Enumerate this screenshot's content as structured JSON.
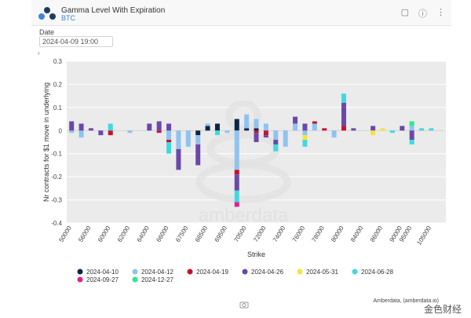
{
  "header": {
    "title": "Gamma Level With Expiration",
    "subtitle": "BTC",
    "icons": [
      "bookmark-icon",
      "info-icon",
      "more-icon"
    ]
  },
  "filter": {
    "label": "Date",
    "value": "2024-04-09 19:00"
  },
  "credit": "Amberdata, (amberdata.io)",
  "brand": "金色财经",
  "watermark": "amberdata",
  "colors": {
    "plot_bg": "#ebebeb",
    "grid": "#ffffff"
  },
  "chart_data": {
    "type": "bar",
    "stacked": true,
    "xlabel": "Strike",
    "ylabel": "Nr contracts for $1 move in underlying",
    "ylim": [
      -0.4,
      0.3
    ],
    "yticks": [
      "0.3",
      "0.2",
      "0.1",
      "0",
      "-0.1",
      "-0.2",
      "-0.3",
      "-0.4"
    ],
    "categories": [
      "50000",
      "55000",
      "56000",
      "58000",
      "60000",
      "61000",
      "62000",
      "63000",
      "64000",
      "65000",
      "66000",
      "67000",
      "67500",
      "68000",
      "68500",
      "69000",
      "69500",
      "70000",
      "70500",
      "71000",
      "72000",
      "73000",
      "74000",
      "75000",
      "76000",
      "77000",
      "78000",
      "79000",
      "80000",
      "82000",
      "84000",
      "85000",
      "86000",
      "88000",
      "90000",
      "95000",
      "100000",
      "105000",
      "110000"
    ],
    "tick_labels": [
      "50000",
      "56000",
      "60000",
      "62000",
      "64000",
      "66000",
      "67500",
      "68500",
      "69500",
      "70500",
      "72000",
      "74000",
      "76000",
      "78000",
      "80000",
      "84000",
      "86000",
      "90000",
      "95000",
      "105000"
    ],
    "series": [
      {
        "name": "2024-04-10",
        "color": "#0b2545",
        "values": [
          0,
          0,
          0,
          0,
          0,
          0,
          0,
          0,
          0,
          0,
          0,
          0,
          0,
          -0.02,
          0.02,
          0.03,
          0,
          0.05,
          0.01,
          0.01,
          0,
          0,
          0,
          0,
          0,
          0,
          0,
          0,
          0,
          0,
          0,
          0,
          0,
          0,
          0,
          0,
          0,
          0,
          0
        ]
      },
      {
        "name": "2024-04-12",
        "color": "#8fc3f0",
        "values": [
          -0.01,
          -0.03,
          0,
          0,
          0,
          0,
          -0.01,
          0,
          0,
          0,
          -0.04,
          -0.08,
          -0.07,
          -0.04,
          0.01,
          0,
          -0.01,
          -0.17,
          0.06,
          0.04,
          0.03,
          -0.04,
          -0.07,
          0.03,
          -0.02,
          0.03,
          0,
          -0.03,
          0,
          0,
          0,
          0,
          0,
          0,
          0,
          0.02,
          0,
          0,
          0
        ]
      },
      {
        "name": "2024-04-19",
        "color": "#c8102e",
        "values": [
          0,
          0,
          0,
          0,
          -0.02,
          0,
          0,
          0,
          0,
          -0.01,
          -0.01,
          0,
          0,
          0,
          0,
          0,
          0,
          -0.02,
          0,
          -0.01,
          -0.02,
          0,
          0,
          0,
          0,
          0.01,
          0.01,
          0,
          0.02,
          0,
          0,
          0,
          0,
          0,
          0,
          0,
          0,
          0,
          0
        ]
      },
      {
        "name": "2024-04-26",
        "color": "#6b48a8",
        "values": [
          0.04,
          0.03,
          0.01,
          -0.02,
          0,
          0,
          0,
          0,
          0.03,
          0.04,
          0.03,
          -0.09,
          0,
          -0.09,
          0,
          0,
          0,
          -0.07,
          0,
          -0.04,
          -0.01,
          -0.02,
          0,
          0.03,
          0.03,
          0,
          0,
          0,
          0.1,
          0.01,
          0,
          0.02,
          0,
          0,
          0.02,
          -0.04,
          0,
          0,
          0
        ]
      },
      {
        "name": "2024-05-31",
        "color": "#f5e43b",
        "values": [
          0,
          0,
          0,
          0,
          0,
          0,
          0,
          0,
          0,
          0,
          0,
          0,
          0,
          0,
          0,
          0,
          0,
          0,
          0,
          0,
          0,
          0,
          0,
          0,
          -0.02,
          0,
          0,
          0,
          0,
          0,
          0,
          -0.02,
          0.01,
          0,
          0,
          0,
          0,
          0,
          0
        ]
      },
      {
        "name": "2024-06-28",
        "color": "#40d9e2",
        "values": [
          0,
          0,
          0,
          0,
          0.03,
          0,
          0,
          0,
          0,
          0,
          -0.05,
          0,
          0,
          0,
          0,
          -0.02,
          0,
          -0.05,
          0,
          0,
          0,
          -0.03,
          0,
          0,
          -0.03,
          0,
          0,
          0,
          0.04,
          0,
          0,
          0,
          0,
          -0.01,
          0,
          -0.02,
          0.01,
          0.01,
          0
        ]
      },
      {
        "name": "2024-09-27",
        "color": "#e0208f",
        "values": [
          0,
          0,
          0,
          0,
          0,
          0,
          0,
          0,
          0,
          0,
          0,
          0,
          0,
          0,
          0,
          0,
          0,
          -0.02,
          0,
          0,
          0,
          0,
          0,
          0,
          0,
          0,
          0,
          0,
          0,
          0,
          0,
          0,
          0,
          0,
          0,
          0,
          0,
          0,
          0
        ]
      },
      {
        "name": "2024-12-27",
        "color": "#2ee88a",
        "values": [
          0,
          0,
          0,
          0,
          0,
          0,
          0,
          0,
          0,
          0,
          0,
          0,
          0,
          0,
          0,
          0,
          0,
          0,
          0,
          0,
          0,
          0,
          0,
          0,
          0,
          0,
          0,
          0,
          0,
          0,
          0,
          0,
          0,
          0,
          0,
          0.02,
          0,
          0,
          0
        ]
      }
    ],
    "legend_position": "bottom",
    "grid": true
  }
}
